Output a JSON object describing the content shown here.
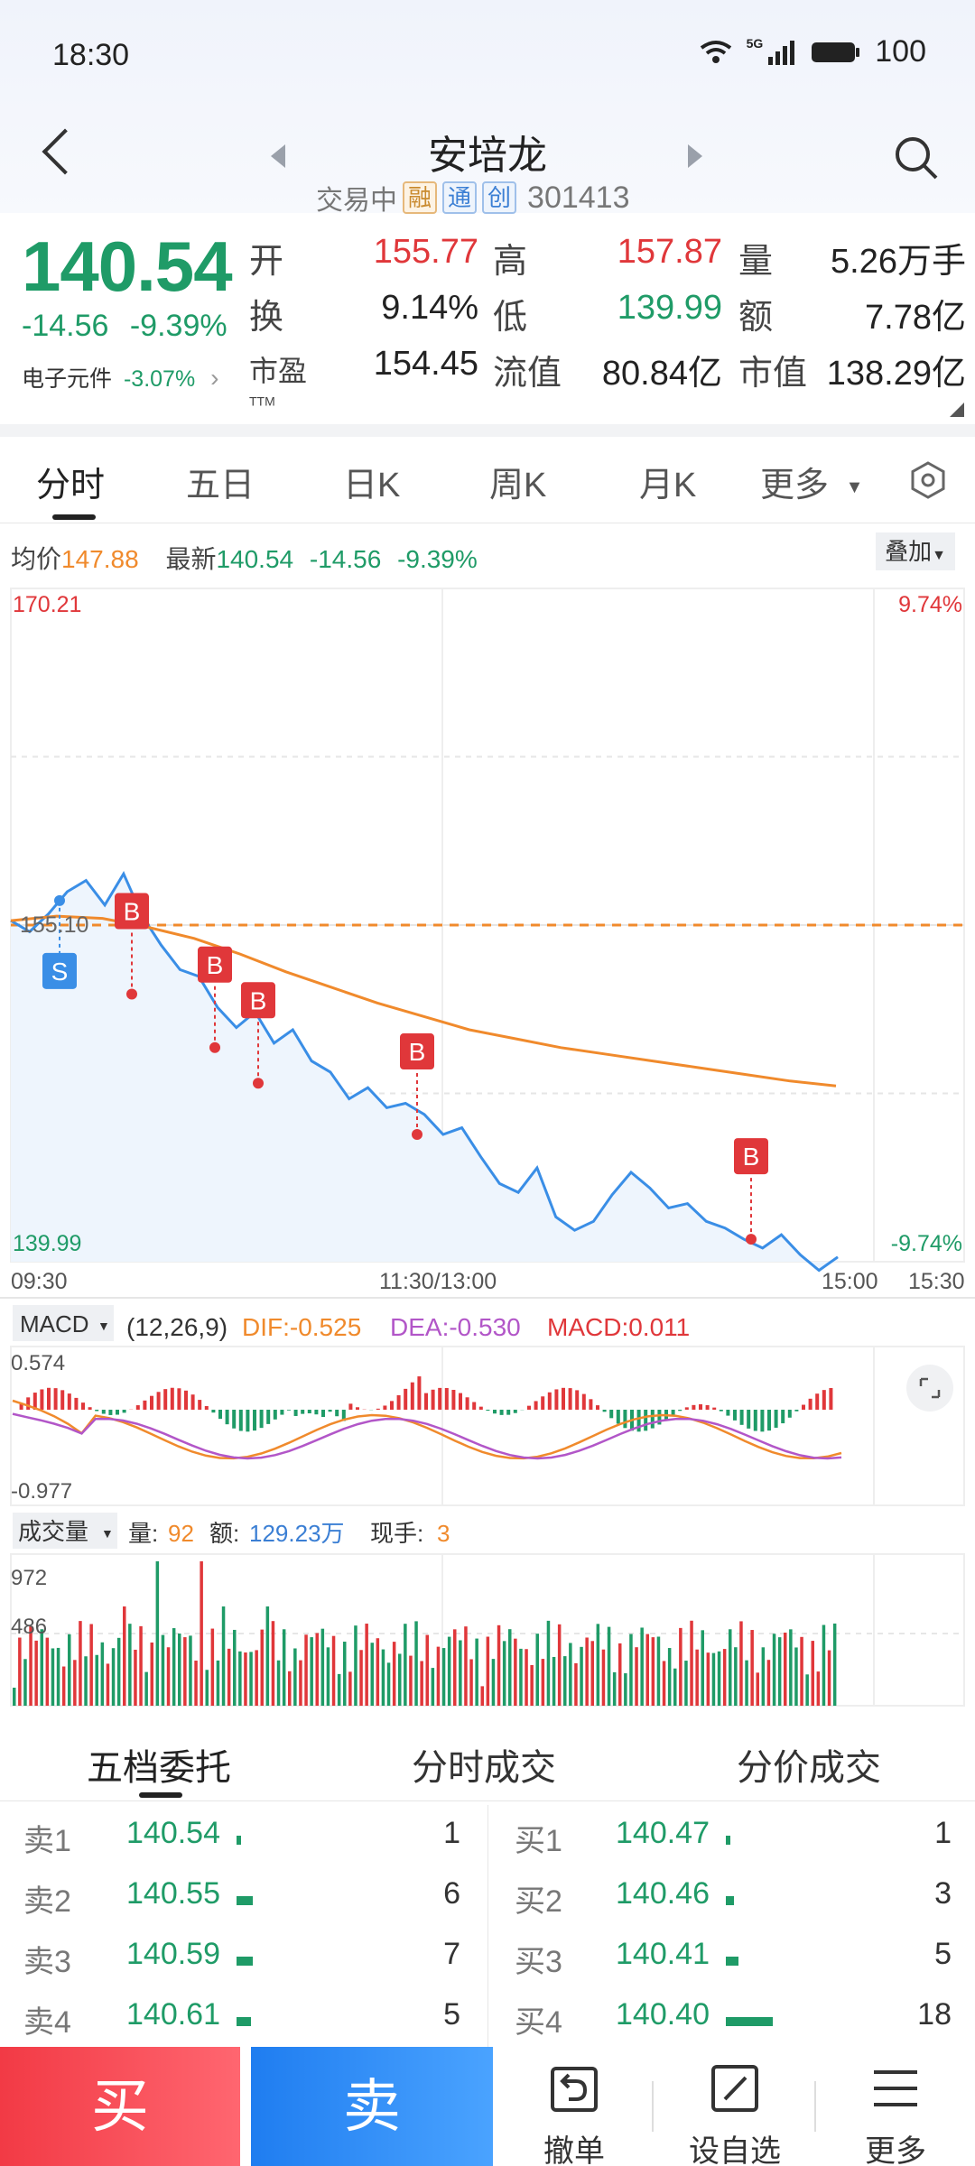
{
  "status": {
    "time": "18:30",
    "network": "5G",
    "battery": "100"
  },
  "header": {
    "name": "安培龙",
    "state": "交易中",
    "tags": [
      "融",
      "通",
      "创"
    ],
    "code": "301413"
  },
  "quote": {
    "price": "140.54",
    "change": "-14.56",
    "change_pct": "-9.39%",
    "sector": "电子元件",
    "sector_pct": "-3.07%",
    "fields": [
      {
        "label": "开",
        "value": "155.77",
        "color": "#e0373a"
      },
      {
        "label": "高",
        "value": "157.87",
        "color": "#e0373a"
      },
      {
        "label": "量",
        "value": "5.26万手",
        "color": "#222222"
      },
      {
        "label": "换",
        "value": "9.14%",
        "color": "#222222"
      },
      {
        "label": "低",
        "value": "139.99",
        "color": "#1f9b67"
      },
      {
        "label": "额",
        "value": "7.78亿",
        "color": "#222222"
      },
      {
        "label": "市盈",
        "label_sup": "TTM",
        "value": "154.45",
        "color": "#222222"
      },
      {
        "label": "流值",
        "value": "80.84亿",
        "color": "#222222"
      },
      {
        "label": "市值",
        "value": "138.29亿",
        "color": "#222222"
      }
    ]
  },
  "tabs": [
    "分时",
    "五日",
    "日K",
    "周K",
    "月K",
    "更多"
  ],
  "chart_info": {
    "avg_label": "均价",
    "avg_value": "147.88",
    "latest_label": "最新",
    "latest_value": "140.54",
    "latest_change": "-14.56",
    "latest_pct": "-9.39%",
    "overlay": "叠加"
  },
  "chart_data": {
    "type": "line",
    "price_axis": {
      "max": "170.21",
      "min": "139.99",
      "ref": "155.10",
      "max_pct": "9.74%",
      "min_pct": "-9.74%"
    },
    "time_labels": [
      "09:30",
      "11:30/13:00",
      "15:00",
      "15:30"
    ],
    "series": [
      {
        "name": "最新",
        "color": "#3a8ee6",
        "values": [
          155.3,
          154.8,
          155.6,
          156.6,
          157.1,
          156.0,
          157.4,
          155.5,
          154.2,
          153.1,
          152.8,
          151.4,
          150.5,
          151.2,
          149.8,
          150.4,
          149.0,
          148.5,
          147.3,
          147.8,
          146.9,
          147.1,
          146.6,
          145.7,
          146.0,
          144.7,
          143.5,
          143.1,
          144.2,
          142.0,
          141.4,
          141.8,
          143.0,
          144.0,
          143.3,
          142.4,
          142.6,
          141.8,
          141.5,
          141.0,
          140.6,
          141.2,
          140.3,
          139.6,
          140.2
        ]
      },
      {
        "name": "均价",
        "color": "#f08a2c",
        "values": [
          155.3,
          155.5,
          155.4,
          155.0,
          154.5,
          153.8,
          153.0,
          152.3,
          151.6,
          151.0,
          150.4,
          150.0,
          149.6,
          149.3,
          149.0,
          148.7,
          148.4,
          148.1,
          147.88
        ]
      }
    ],
    "trade_markers": [
      {
        "label": "S",
        "price": 156.2,
        "color": "#3a8ee6"
      },
      {
        "label": "B",
        "price": 152.0,
        "color": "#e0373a"
      },
      {
        "label": "B",
        "price": 149.6,
        "color": "#e0373a"
      },
      {
        "label": "B",
        "price": 148.0,
        "color": "#e0373a"
      },
      {
        "label": "B",
        "price": 145.7,
        "color": "#e0373a"
      },
      {
        "label": "B",
        "price": 141.0,
        "color": "#e0373a"
      }
    ],
    "macd": {
      "name": "MACD",
      "params": "(12,26,9)",
      "dif": "DIF:-0.525",
      "dea": "DEA:-0.530",
      "macd": "MACD:0.011",
      "max": "0.574",
      "min": "-0.977"
    },
    "volume": {
      "name": "成交量",
      "vol_label": "量:",
      "vol": "92",
      "amt_label": "额:",
      "amt": "129.23万",
      "cur_label": "现手:",
      "cur": "3",
      "max": "972",
      "mid": "486"
    }
  },
  "orderbook": {
    "tabs": [
      "五档委托",
      "分时成交",
      "分价成交"
    ],
    "sell": [
      {
        "label": "卖1",
        "price": "140.54",
        "qty": "1",
        "bar": 0.05
      },
      {
        "label": "卖2",
        "price": "140.55",
        "qty": "6",
        "bar": 0.2
      },
      {
        "label": "卖3",
        "price": "140.59",
        "qty": "7",
        "bar": 0.2
      },
      {
        "label": "卖4",
        "price": "140.61",
        "qty": "5",
        "bar": 0.18
      }
    ],
    "buy": [
      {
        "label": "买1",
        "price": "140.47",
        "qty": "1",
        "bar": 0.05
      },
      {
        "label": "买2",
        "price": "140.46",
        "qty": "3",
        "bar": 0.1
      },
      {
        "label": "买3",
        "price": "140.41",
        "qty": "5",
        "bar": 0.16
      },
      {
        "label": "买4",
        "price": "140.40",
        "qty": "18",
        "bar": 0.58
      }
    ]
  },
  "bottom": {
    "buy": "买",
    "sell": "卖",
    "cancel": "撤单",
    "watch": "设自选",
    "more": "更多"
  }
}
